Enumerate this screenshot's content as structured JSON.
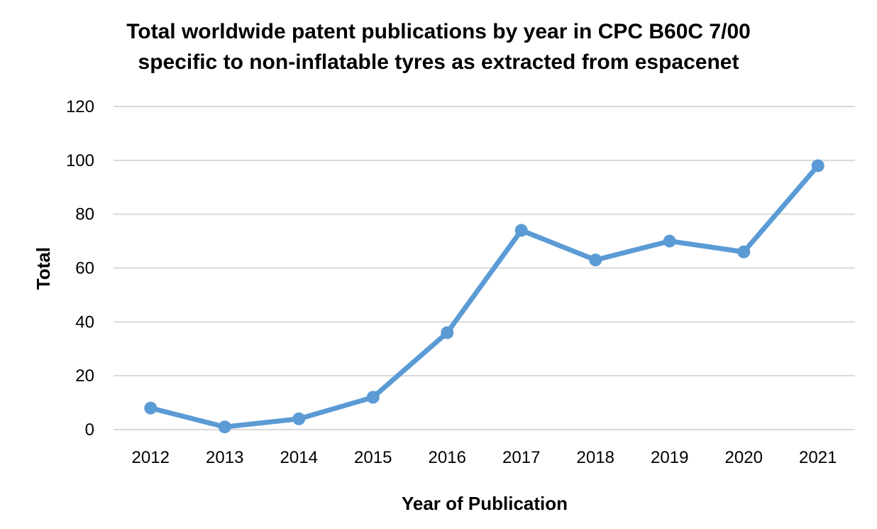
{
  "chart_data": {
    "type": "line",
    "title_lines": [
      "Total worldwide patent publications by year in CPC B60C 7/00",
      "specific to non-inflatable tyres as extracted from espacenet"
    ],
    "xlabel": "Year of Publication",
    "ylabel": "Total",
    "categories": [
      "2012",
      "2013",
      "2014",
      "2015",
      "2016",
      "2017",
      "2018",
      "2019",
      "2020",
      "2021"
    ],
    "series": [
      {
        "name": "Total",
        "values": [
          8,
          1,
          4,
          12,
          36,
          74,
          63,
          70,
          66,
          98
        ]
      }
    ],
    "ylim": [
      0,
      120
    ],
    "yticks": [
      0,
      20,
      40,
      60,
      80,
      100,
      120
    ],
    "grid": true,
    "line_color": "#5b9bd5",
    "grid_color": "#d9d9d9"
  }
}
